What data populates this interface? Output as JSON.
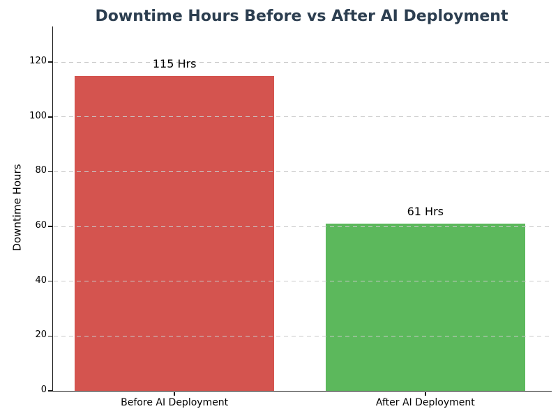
{
  "chart_data": {
    "type": "bar",
    "title": "Downtime Hours Before vs After AI Deployment",
    "title_color": "#2c3e50",
    "ylabel": "Downtime Hours",
    "xlabel": "",
    "categories": [
      "Before AI Deployment",
      "After AI Deployment"
    ],
    "values": [
      115,
      61
    ],
    "bar_labels": [
      "115 Hrs",
      "61 Hrs"
    ],
    "bar_colors": [
      "#d4544f",
      "#5cb85c"
    ],
    "yticks": [
      0,
      20,
      40,
      60,
      80,
      100,
      120
    ],
    "ylim": [
      0,
      133
    ],
    "grid": {
      "axis": "y",
      "style": "dashed",
      "color": "#c9c9c9",
      "drawn_above_bars": true
    },
    "legend": "none"
  }
}
